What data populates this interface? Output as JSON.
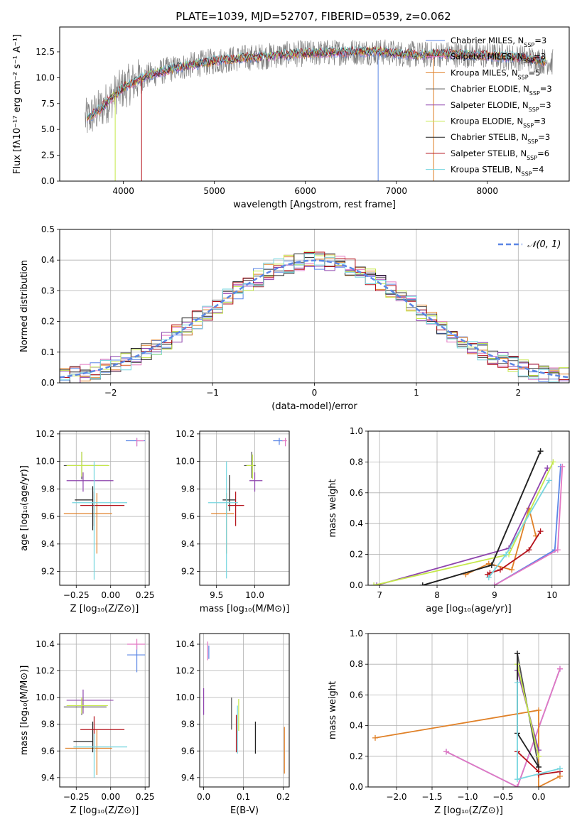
{
  "figure_title": "PLATE=1039, MJD=52707, FIBERID=0539, z=0.062",
  "series_colors": [
    "#5b86e5",
    "#e377c2",
    "#e08128",
    "#4f4f4f",
    "#8e44ad",
    "#c5e84a",
    "#222222",
    "#b5121b",
    "#76d6df"
  ],
  "chart_data": [
    {
      "id": "spectrum",
      "type": "line",
      "xlabel": "wavelength [Angstrom, rest frame]",
      "ylabel": "Flux [fλ10⁻¹⁷ erg cm⁻² s⁻¹ A⁻¹]",
      "xlim": [
        3300,
        8900
      ],
      "ylim": [
        0,
        14.9
      ],
      "xticks": [
        4000,
        5000,
        6000,
        7000,
        8000
      ],
      "yticks": [
        0.0,
        2.5,
        5.0,
        7.5,
        10.0,
        12.5
      ],
      "grid": false,
      "legend_position": "top-right",
      "legend": [
        "Chabrier MILES, N_SSP=3",
        "Salpeter MILES, N_SSP=3",
        "Kroupa MILES, N_SSP=5",
        "Chabrier ELODIE, N_SSP=3",
        "Salpeter ELODIE, N_SSP=3",
        "Kroupa ELODIE, N_SSP=3",
        "Chabrier STELIB, N_SSP=3",
        "Salpeter STELIB, N_SSP=6",
        "Kroupa STELIB, N_SSP=4"
      ],
      "continuum_anchors": {
        "x": [
          3600,
          3750,
          3900,
          4000,
          4200,
          4500,
          4800,
          5000,
          5300,
          5600,
          5900,
          6200,
          6500,
          6800,
          7100,
          7300,
          7500,
          7800,
          8100,
          8400,
          8700
        ],
        "y": [
          6.0,
          7.0,
          8.3,
          9.0,
          10.0,
          10.8,
          11.3,
          11.6,
          11.9,
          12.1,
          12.3,
          12.4,
          12.5,
          12.5,
          12.3,
          12.2,
          12.3,
          12.2,
          12.1,
          11.9,
          11.5
        ]
      },
      "dropouts": [
        {
          "x": 3910,
          "y": 0.0
        },
        {
          "x": 4200,
          "y": 0.0
        },
        {
          "x": 6800,
          "y": 0.0
        },
        {
          "x": 7410,
          "y": 0.0
        }
      ]
    },
    {
      "id": "residual_hist",
      "type": "histogram",
      "xlabel": "(data-model)/error",
      "ylabel": "Normed distribution",
      "xlim": [
        -2.5,
        2.5
      ],
      "ylim": [
        0,
        0.5
      ],
      "xticks": [
        -2,
        -1,
        0,
        1,
        2
      ],
      "yticks": [
        0.0,
        0.1,
        0.2,
        0.3,
        0.4,
        0.5
      ],
      "grid": true,
      "legend_position": "top-right",
      "legend": [
        "𝒩(0, 1)"
      ],
      "bin_width": 0.1,
      "reference_curve": "standard normal"
    },
    {
      "id": "age_vs_Z",
      "type": "errorbar",
      "xlabel": "Z [log₁₀(Z/Z⊙)]",
      "ylabel": "age  [log₁₀(age/yr)]",
      "xlim": [
        -0.37,
        0.28
      ],
      "ylim": [
        9.1,
        10.22
      ],
      "xticks": [
        -0.25,
        0.0,
        0.25
      ],
      "yticks": [
        9.2,
        9.4,
        9.6,
        9.8,
        10.0,
        10.2
      ],
      "grid": true,
      "points": [
        {
          "x": 0.19,
          "y": 10.15,
          "xerr": [
            0.08,
            0.06
          ],
          "yerr": [
            0.04,
            0.02
          ],
          "c": 0
        },
        {
          "x": 0.19,
          "y": 10.15,
          "xerr": [
            0.0,
            0.05
          ],
          "yerr": [
            0.04,
            0.02
          ],
          "c": 1
        },
        {
          "x": -0.1,
          "y": 9.62,
          "xerr": [
            0.24,
            0.11
          ],
          "yerr": [
            0.29,
            0.15
          ],
          "c": 2
        },
        {
          "x": -0.21,
          "y": 9.97,
          "xerr": [
            0.13,
            0.19
          ],
          "yerr": [
            0.1,
            0.1
          ],
          "c": 3
        },
        {
          "x": -0.2,
          "y": 9.86,
          "xerr": [
            0.12,
            0.22
          ],
          "yerr": [
            0.08,
            0.06
          ],
          "c": 4
        },
        {
          "x": -0.21,
          "y": 9.97,
          "xerr": [
            0.11,
            0.2
          ],
          "yerr": [
            0.08,
            0.1
          ],
          "c": 5
        },
        {
          "x": -0.13,
          "y": 9.72,
          "xerr": [
            0.13,
            0.0
          ],
          "yerr": [
            0.22,
            0.1
          ],
          "c": 6
        },
        {
          "x": -0.12,
          "y": 9.68,
          "xerr": [
            0.1,
            0.22
          ],
          "yerr": [
            0.15,
            0.1
          ],
          "c": 7
        },
        {
          "x": -0.12,
          "y": 9.7,
          "xerr": [
            0.16,
            0.24
          ],
          "yerr": [
            0.56,
            0.3
          ],
          "c": 8
        }
      ]
    },
    {
      "id": "age_vs_mass",
      "type": "errorbar",
      "xlabel": "mass [log₁₀(M/M⊙)]",
      "ylabel": "",
      "xlim": [
        9.28,
        10.45
      ],
      "ylim": [
        9.1,
        10.22
      ],
      "xticks": [
        9.5,
        10.0
      ],
      "yticks": [
        9.2,
        9.4,
        9.6,
        9.8,
        10.0,
        10.2
      ],
      "grid": true,
      "points": [
        {
          "x": 10.32,
          "y": 10.15,
          "xerr": [
            0.08,
            0.05
          ],
          "yerr": [
            0.03,
            0.02
          ],
          "c": 0
        },
        {
          "x": 10.4,
          "y": 10.15,
          "xerr": [
            0.04,
            0.02
          ],
          "yerr": [
            0.04,
            0.02
          ],
          "c": 1
        },
        {
          "x": 9.63,
          "y": 9.62,
          "xerr": [
            0.2,
            0.1
          ],
          "yerr": [
            0.29,
            0.15
          ],
          "c": 2
        },
        {
          "x": 9.96,
          "y": 9.97,
          "xerr": [
            0.1,
            0.05
          ],
          "yerr": [
            0.09,
            0.1
          ],
          "c": 3
        },
        {
          "x": 10.0,
          "y": 9.86,
          "xerr": [
            0.07,
            0.1
          ],
          "yerr": [
            0.08,
            0.06
          ],
          "c": 4
        },
        {
          "x": 9.97,
          "y": 9.97,
          "xerr": [
            0.08,
            0.02
          ],
          "yerr": [
            0.1,
            0.08
          ],
          "c": 5
        },
        {
          "x": 9.67,
          "y": 9.72,
          "xerr": [
            0.09,
            0.08
          ],
          "yerr": [
            0.08,
            0.18
          ],
          "c": 6
        },
        {
          "x": 9.75,
          "y": 9.68,
          "xerr": [
            0.1,
            0.11
          ],
          "yerr": [
            0.15,
            0.1
          ],
          "c": 7
        },
        {
          "x": 9.63,
          "y": 9.7,
          "xerr": [
            0.24,
            0.15
          ],
          "yerr": [
            0.55,
            0.3
          ],
          "c": 8
        }
      ]
    },
    {
      "id": "mass_weight_vs_age",
      "type": "line",
      "xlabel": "age  [log₁₀(age/yr)]",
      "ylabel": "mass weight",
      "xlim": [
        6.8,
        10.3
      ],
      "ylim": [
        0,
        1.0
      ],
      "xticks": [
        7,
        8,
        9,
        10
      ],
      "yticks": [
        0.0,
        0.2,
        0.4,
        0.6,
        0.8,
        1.0
      ],
      "grid": true,
      "series": [
        {
          "c": 0,
          "x": [
            9.0,
            10.05,
            10.15
          ],
          "y": [
            0.0,
            0.23,
            0.77
          ]
        },
        {
          "c": 1,
          "x": [
            9.0,
            10.1,
            10.18
          ],
          "y": [
            0.0,
            0.23,
            0.77
          ]
        },
        {
          "c": 2,
          "x": [
            8.5,
            8.9,
            9.3,
            9.6,
            9.72
          ],
          "y": [
            0.07,
            0.14,
            0.1,
            0.5,
            0.32
          ]
        },
        {
          "c": 3,
          "x": [
            7.75,
            8.95,
            9.8
          ],
          "y": [
            0.0,
            0.13,
            0.87
          ]
        },
        {
          "c": 4,
          "x": [
            6.95,
            9.25,
            9.92
          ],
          "y": [
            0.0,
            0.24,
            0.76
          ]
        },
        {
          "c": 5,
          "x": [
            6.9,
            9.25,
            10.02
          ],
          "y": [
            0.0,
            0.2,
            0.8
          ]
        },
        {
          "c": 6,
          "x": [
            7.75,
            8.95,
            9.8
          ],
          "y": [
            0.0,
            0.13,
            0.87
          ]
        },
        {
          "c": 7,
          "x": [
            8.88,
            8.92,
            9.1,
            9.6,
            9.8
          ],
          "y": [
            0.07,
            0.08,
            0.1,
            0.23,
            0.35
          ]
        },
        {
          "c": 8,
          "x": [
            8.9,
            9.2,
            9.95
          ],
          "y": [
            0.05,
            0.2,
            0.68
          ]
        }
      ]
    },
    {
      "id": "mass_vs_Z",
      "type": "errorbar",
      "xlabel": "Z [log₁₀(Z/Z⊙)]",
      "ylabel": "mass [log₁₀(M/M⊙)]",
      "xlim": [
        -0.37,
        0.28
      ],
      "ylim": [
        9.33,
        10.48
      ],
      "xticks": [
        -0.25,
        0.0,
        0.25
      ],
      "yticks": [
        9.4,
        9.6,
        9.8,
        10.0,
        10.2,
        10.4
      ],
      "grid": true,
      "points": [
        {
          "x": 0.19,
          "y": 10.32,
          "xerr": [
            0.07,
            0.06
          ],
          "yerr": [
            0.13,
            0.08
          ],
          "c": 0
        },
        {
          "x": 0.19,
          "y": 10.4,
          "xerr": [
            0.07,
            0.06
          ],
          "yerr": [
            0.04,
            0.04
          ],
          "c": 1
        },
        {
          "x": -0.1,
          "y": 9.62,
          "xerr": [
            0.23,
            0.11
          ],
          "yerr": [
            0.2,
            0.14
          ],
          "c": 2
        },
        {
          "x": -0.21,
          "y": 9.93,
          "xerr": [
            0.13,
            0.18
          ],
          "yerr": [
            0.06,
            0.06
          ],
          "c": 3
        },
        {
          "x": -0.2,
          "y": 9.98,
          "xerr": [
            0.12,
            0.22
          ],
          "yerr": [
            0.1,
            0.08
          ],
          "c": 4
        },
        {
          "x": -0.21,
          "y": 9.94,
          "xerr": [
            0.11,
            0.19
          ],
          "yerr": [
            0.06,
            0.06
          ],
          "c": 5
        },
        {
          "x": -0.13,
          "y": 9.67,
          "xerr": [
            0.14,
            0.0
          ],
          "yerr": [
            0.08,
            0.15
          ],
          "c": 6
        },
        {
          "x": -0.12,
          "y": 9.76,
          "xerr": [
            0.1,
            0.22
          ],
          "yerr": [
            0.14,
            0.1
          ],
          "c": 7
        },
        {
          "x": -0.12,
          "y": 9.63,
          "xerr": [
            0.15,
            0.24
          ],
          "yerr": [
            0.23,
            0.1
          ],
          "c": 8
        }
      ]
    },
    {
      "id": "mass_vs_ebv",
      "type": "errorbar",
      "xlabel": "E(B-V)",
      "ylabel": "",
      "xlim": [
        -0.01,
        0.215
      ],
      "ylim": [
        9.33,
        10.48
      ],
      "xticks": [
        0.0,
        0.1,
        0.2
      ],
      "yticks": [
        9.4,
        9.6,
        9.8,
        10.0,
        10.2,
        10.4
      ],
      "grid": true,
      "points": [
        {
          "x": 0.013,
          "y": 10.34,
          "xerr": [
            0.0,
            0.0
          ],
          "yerr": [
            0.05,
            0.05
          ],
          "c": 0
        },
        {
          "x": 0.01,
          "y": 10.35,
          "xerr": [
            0.0,
            0.0
          ],
          "yerr": [
            0.07,
            0.07
          ],
          "c": 1
        },
        {
          "x": 0.203,
          "y": 9.6,
          "xerr": [
            0.0,
            0.0
          ],
          "yerr": [
            0.17,
            0.18
          ],
          "c": 2
        },
        {
          "x": 0.07,
          "y": 9.88,
          "xerr": [
            0.0,
            0.0
          ],
          "yerr": [
            0.12,
            0.12
          ],
          "c": 3
        },
        {
          "x": 0.0,
          "y": 9.97,
          "xerr": [
            0.0,
            0.0
          ],
          "yerr": [
            0.1,
            0.1
          ],
          "c": 4
        },
        {
          "x": 0.088,
          "y": 9.87,
          "xerr": [
            0.0,
            0.0
          ],
          "yerr": [
            0.12,
            0.12
          ],
          "c": 5
        },
        {
          "x": 0.13,
          "y": 9.7,
          "xerr": [
            0.0,
            0.0
          ],
          "yerr": [
            0.12,
            0.12
          ],
          "c": 6
        },
        {
          "x": 0.082,
          "y": 9.73,
          "xerr": [
            0.0,
            0.0
          ],
          "yerr": [
            0.14,
            0.14
          ],
          "c": 7
        },
        {
          "x": 0.085,
          "y": 9.76,
          "xerr": [
            0.0,
            0.0
          ],
          "yerr": [
            0.18,
            0.18
          ],
          "c": 8
        }
      ]
    },
    {
      "id": "mass_weight_vs_Z",
      "type": "line",
      "xlabel": "Z [log₁₀(Z/Z⊙)]",
      "ylabel": "mass weight",
      "xlim": [
        -2.4,
        0.43
      ],
      "ylim": [
        0,
        1.0
      ],
      "xticks": [
        -2.0,
        -1.5,
        -1.0,
        -0.5,
        0.0
      ],
      "yticks": [
        0.0,
        0.2,
        0.4,
        0.6,
        0.8,
        1.0
      ],
      "grid": true,
      "series": [
        {
          "c": 0,
          "x": [
            -1.3,
            -0.3,
            0.3
          ],
          "y": [
            0.23,
            0.0,
            0.77
          ]
        },
        {
          "c": 1,
          "x": [
            -1.3,
            -0.3,
            0.3
          ],
          "y": [
            0.23,
            0.0,
            0.77
          ]
        },
        {
          "c": 2,
          "x": [
            -2.3,
            0.0,
            0.0,
            0.3
          ],
          "y": [
            0.32,
            0.5,
            0.0,
            0.07
          ]
        },
        {
          "c": 3,
          "x": [
            -0.3,
            0.0
          ],
          "y": [
            0.87,
            0.13
          ]
        },
        {
          "c": 4,
          "x": [
            -0.3,
            0.0
          ],
          "y": [
            0.76,
            0.24
          ]
        },
        {
          "c": 5,
          "x": [
            -0.3,
            0.0
          ],
          "y": [
            0.8,
            0.2
          ]
        },
        {
          "c": 6,
          "x": [
            -0.3,
            -0.3,
            0.0
          ],
          "y": [
            0.87,
            0.35,
            0.13
          ]
        },
        {
          "c": 7,
          "x": [
            -0.3,
            0.0,
            0.0,
            0.3
          ],
          "y": [
            0.23,
            0.1,
            0.08,
            0.1
          ]
        },
        {
          "c": 8,
          "x": [
            -0.3,
            -0.3,
            0.3
          ],
          "y": [
            0.68,
            0.05,
            0.12
          ]
        }
      ]
    }
  ]
}
